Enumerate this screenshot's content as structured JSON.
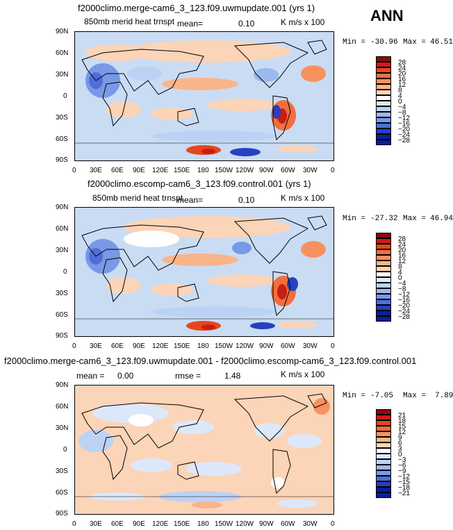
{
  "season": "ANN",
  "x_tick_labels": [
    "0",
    "30E",
    "60E",
    "90E",
    "120E",
    "150E",
    "180",
    "150W",
    "120W",
    "90W",
    "60W",
    "30W",
    "0"
  ],
  "y_tick_labels": [
    "90N",
    "60N",
    "30N",
    "0",
    "30S",
    "60S",
    "90S"
  ],
  "panels": [
    {
      "title": "f2000climo.merge-cam6_3_123.f09.uwmupdate.001 (yrs 1)",
      "variable_label": "850mb merid heat trnspt",
      "stat_label": "mean=",
      "stat_value": "0.10",
      "units": "K m/s x 100",
      "min_label": "Min =",
      "min_value": "-30.96",
      "max_label": "Max =",
      "max_value": "46.51",
      "colorbar": {
        "levels": [
          "28",
          "24",
          "20",
          "16",
          "12",
          "8",
          "4",
          "0",
          "−4",
          "−8",
          "−12",
          "−16",
          "−20",
          "−24",
          "−28"
        ],
        "colors": [
          "#8b0a0a",
          "#c81e14",
          "#e6461e",
          "#f26e3c",
          "#f7925e",
          "#fab48a",
          "#fcd4b8",
          "#ffffff",
          "#dce8fa",
          "#bcd2f5",
          "#9ab9ee",
          "#7799e6",
          "#4f6ed8",
          "#2640c0",
          "#0a1e9a"
        ]
      }
    },
    {
      "title": "f2000climo.escomp-cam6_3_123.f09.control.001 (yrs 1)",
      "variable_label": "850mb merid heat trnspt",
      "stat_label": "mean=",
      "stat_value": "0.10",
      "units": "K m/s x 100",
      "min_label": "Min =",
      "min_value": "-27.32",
      "max_label": "Max =",
      "max_value": "46.94",
      "colorbar": {
        "levels": [
          "28",
          "24",
          "20",
          "16",
          "12",
          "8",
          "4",
          "0",
          "−4",
          "−8",
          "−12",
          "−16",
          "−20",
          "−24",
          "−28"
        ],
        "colors": [
          "#8b0a0a",
          "#c81e14",
          "#e6461e",
          "#f26e3c",
          "#f7925e",
          "#fab48a",
          "#fcd4b8",
          "#ffffff",
          "#dce8fa",
          "#bcd2f5",
          "#9ab9ee",
          "#7799e6",
          "#4f6ed8",
          "#2640c0",
          "#0a1e9a"
        ]
      }
    },
    {
      "title": "f2000climo.merge-cam6_3_123.f09.uwmupdate.001 - f2000climo.escomp-cam6_3_123.f09.control.001",
      "mean_label": "mean =",
      "mean_value": "0.00",
      "rmse_label": "rmse =",
      "rmse_value": "1.48",
      "units": "K m/s x 100",
      "min_label": "Min =",
      "min_value": "-7.05",
      "max_label": "Max =",
      "max_value": "7.89",
      "colorbar": {
        "levels": [
          "21",
          "18",
          "15",
          "12",
          "9",
          "6",
          "3",
          "0",
          "−3",
          "−6",
          "−9",
          "−12",
          "−15",
          "−18",
          "−21"
        ],
        "colors": [
          "#8b0a0a",
          "#c81e14",
          "#e6461e",
          "#f26e3c",
          "#f7925e",
          "#fab48a",
          "#fcd4b8",
          "#ffffff",
          "#dce8fa",
          "#bcd2f5",
          "#9ab9ee",
          "#7799e6",
          "#4f6ed8",
          "#2640c0",
          "#0a1e9a"
        ]
      }
    }
  ]
}
